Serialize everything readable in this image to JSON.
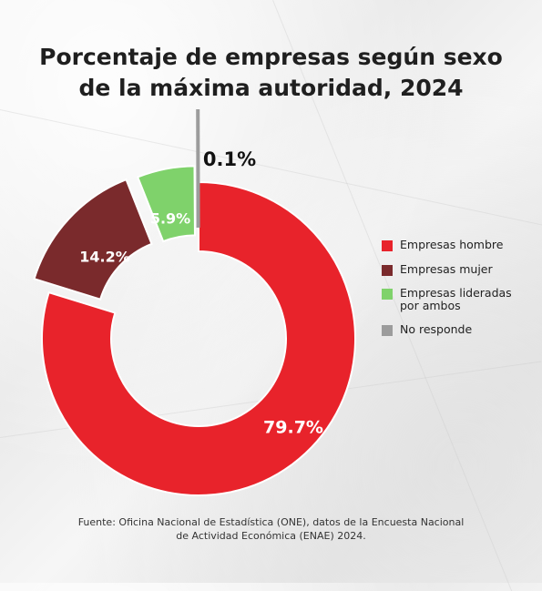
{
  "title_lines": [
    "Porcentaje de empresas según sexo",
    "de la máxima autoridad, 2024"
  ],
  "source_lines": [
    "Fuente: Oficina Nacional de Estadística (ONE), datos de la Encuesta Nacional",
    "de Actividad Económica (ENAE) 2024."
  ],
  "chart_data": {
    "type": "pie",
    "subtype": "donut",
    "categories": [
      "Empresas hombre",
      "Empresas mujer",
      "Empresas lideradas por ambos",
      "No responde"
    ],
    "values": [
      79.7,
      14.2,
      5.9,
      0.1
    ],
    "data_labels": [
      "79.7%",
      "14.2%",
      "5.9%",
      "0.1%"
    ],
    "colors": [
      "#e8232b",
      "#7a2a2c",
      "#7fd26b",
      "#9c9c9c"
    ],
    "legend_position": "right"
  },
  "legend": {
    "items": [
      {
        "lines": [
          "Empresas hombre"
        ],
        "color": "#e8232b"
      },
      {
        "lines": [
          "Empresas mujer"
        ],
        "color": "#7a2a2c"
      },
      {
        "lines": [
          "Empresas lideradas",
          "por ambos"
        ],
        "color": "#7fd26b"
      },
      {
        "lines": [
          "No responde"
        ],
        "color": "#9c9c9c"
      }
    ]
  }
}
